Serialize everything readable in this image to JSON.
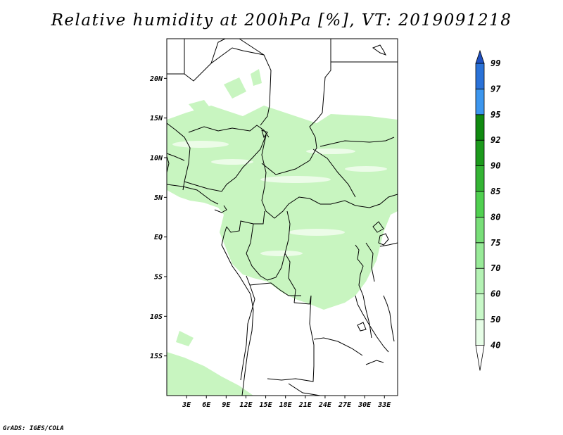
{
  "title": "Relative humidity at 200hPa [%], VT: 2019091218",
  "credit": "GrADS: IGES/COLA",
  "map": {
    "lat_range": [
      -20,
      25
    ],
    "lon_range": [
      0,
      35
    ],
    "lat_ticks": [
      {
        "value": 20,
        "label": "20N"
      },
      {
        "value": 15,
        "label": "15N"
      },
      {
        "value": 10,
        "label": "10N"
      },
      {
        "value": 5,
        "label": "5N"
      },
      {
        "value": 0,
        "label": "EQ"
      },
      {
        "value": -5,
        "label": "5S"
      },
      {
        "value": -10,
        "label": "10S"
      },
      {
        "value": -15,
        "label": "15S"
      }
    ],
    "lon_ticks": [
      {
        "value": 3,
        "label": "3E"
      },
      {
        "value": 6,
        "label": "6E"
      },
      {
        "value": 9,
        "label": "9E"
      },
      {
        "value": 12,
        "label": "12E"
      },
      {
        "value": 15,
        "label": "15E"
      },
      {
        "value": 18,
        "label": "18E"
      },
      {
        "value": 21,
        "label": "21E"
      },
      {
        "value": 24,
        "label": "24E"
      },
      {
        "value": 27,
        "label": "27E"
      },
      {
        "value": 30,
        "label": "30E"
      },
      {
        "value": 33,
        "label": "33E"
      }
    ]
  },
  "colorbar": {
    "levels": [
      "40",
      "50",
      "60",
      "70",
      "75",
      "80",
      "85",
      "90",
      "92",
      "95",
      "97",
      "99"
    ],
    "colors": [
      "#ffffff",
      "#e6fde6",
      "#c8f8c8",
      "#b4f2b4",
      "#98ea98",
      "#78de78",
      "#50d050",
      "#34b434",
      "#1c9a1c",
      "#108a10",
      "#3c96ee",
      "#2a72d8",
      "#1e50c0"
    ]
  },
  "fill_color": "#c8f5c0"
}
